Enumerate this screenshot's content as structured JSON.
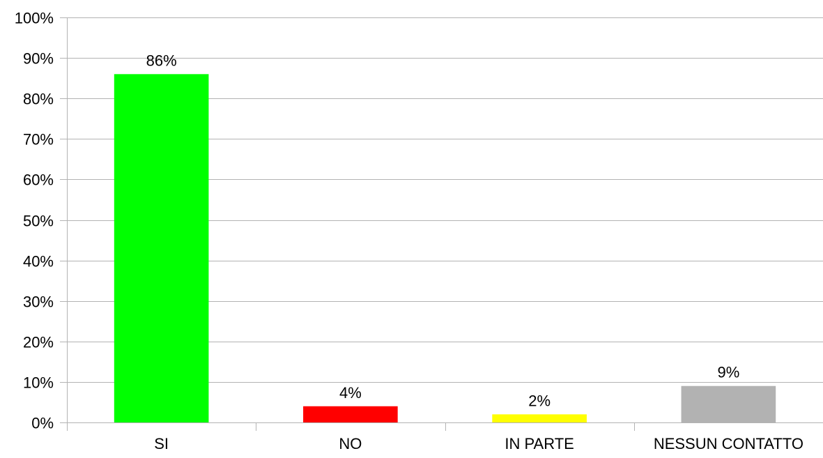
{
  "chart_data": {
    "type": "bar",
    "title": "",
    "xlabel": "",
    "ylabel": "",
    "categories": [
      "SI",
      "NO",
      "IN PARTE",
      "NESSUN CONTATTO"
    ],
    "values": [
      0.86,
      0.04,
      0.02,
      0.09
    ],
    "value_labels": [
      "86%",
      "4%",
      "2%",
      "9%"
    ],
    "colors": [
      "#00ff00",
      "#ff0000",
      "#ffff00",
      "#b2b2b2"
    ],
    "ylim": [
      0,
      1
    ],
    "yticks": [
      0,
      0.1,
      0.2,
      0.3,
      0.4,
      0.5,
      0.6,
      0.7,
      0.8,
      0.9,
      1.0
    ],
    "ytick_labels": [
      "0%",
      "10%",
      "20%",
      "30%",
      "40%",
      "50%",
      "60%",
      "70%",
      "80%",
      "90%",
      "100%"
    ],
    "grid": true,
    "legend": "none",
    "style": {
      "grid_color": "#b3b3b3",
      "axis_color": "#b3b3b3",
      "text_color": "#000000"
    }
  }
}
